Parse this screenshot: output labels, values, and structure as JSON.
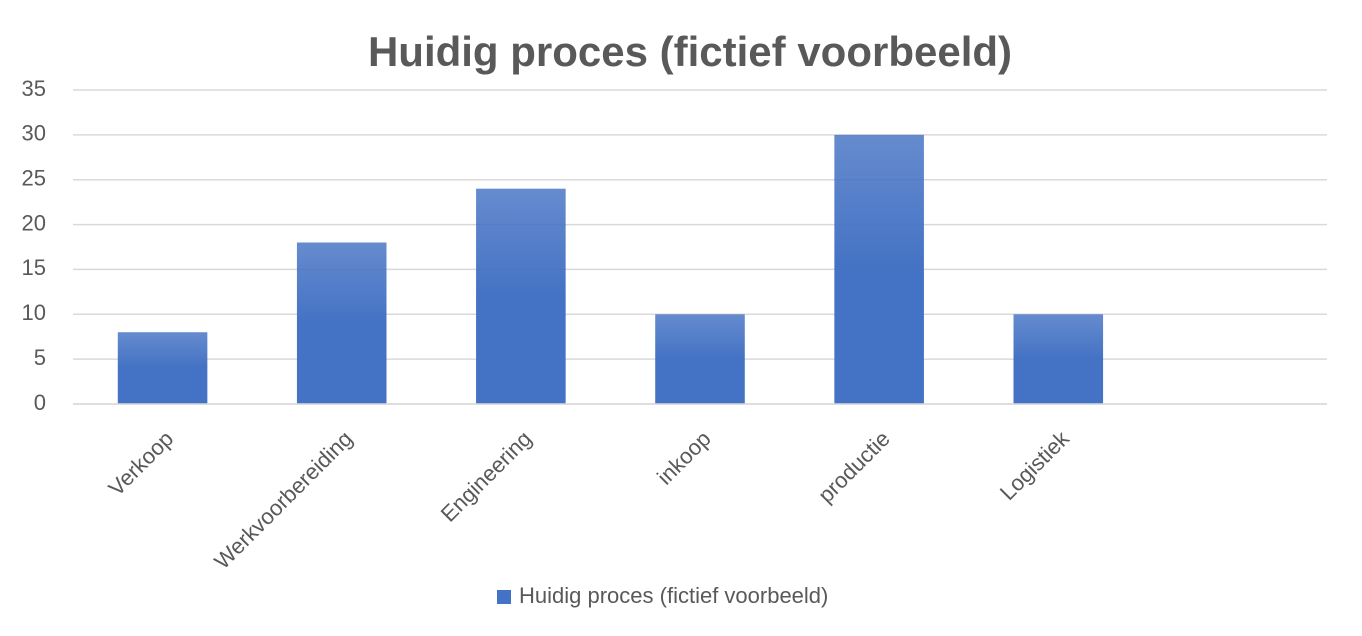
{
  "chart_data": {
    "type": "bar",
    "title": "Huidig proces (fictief voorbeeld)",
    "categories": [
      "Verkoop",
      "Werkvoorbereiding",
      "Engineering",
      "inkoop",
      "productie",
      "Logistiek",
      null
    ],
    "series": [
      {
        "name": "Huidig proces (fictief voorbeeld)",
        "color": "#4472c4",
        "values": [
          8,
          18,
          24,
          10,
          30,
          10,
          null
        ]
      }
    ],
    "ylim": [
      0,
      35
    ],
    "yticks": [
      0,
      5,
      10,
      15,
      20,
      25,
      30,
      35
    ],
    "grid": true,
    "legend": "bottom"
  }
}
